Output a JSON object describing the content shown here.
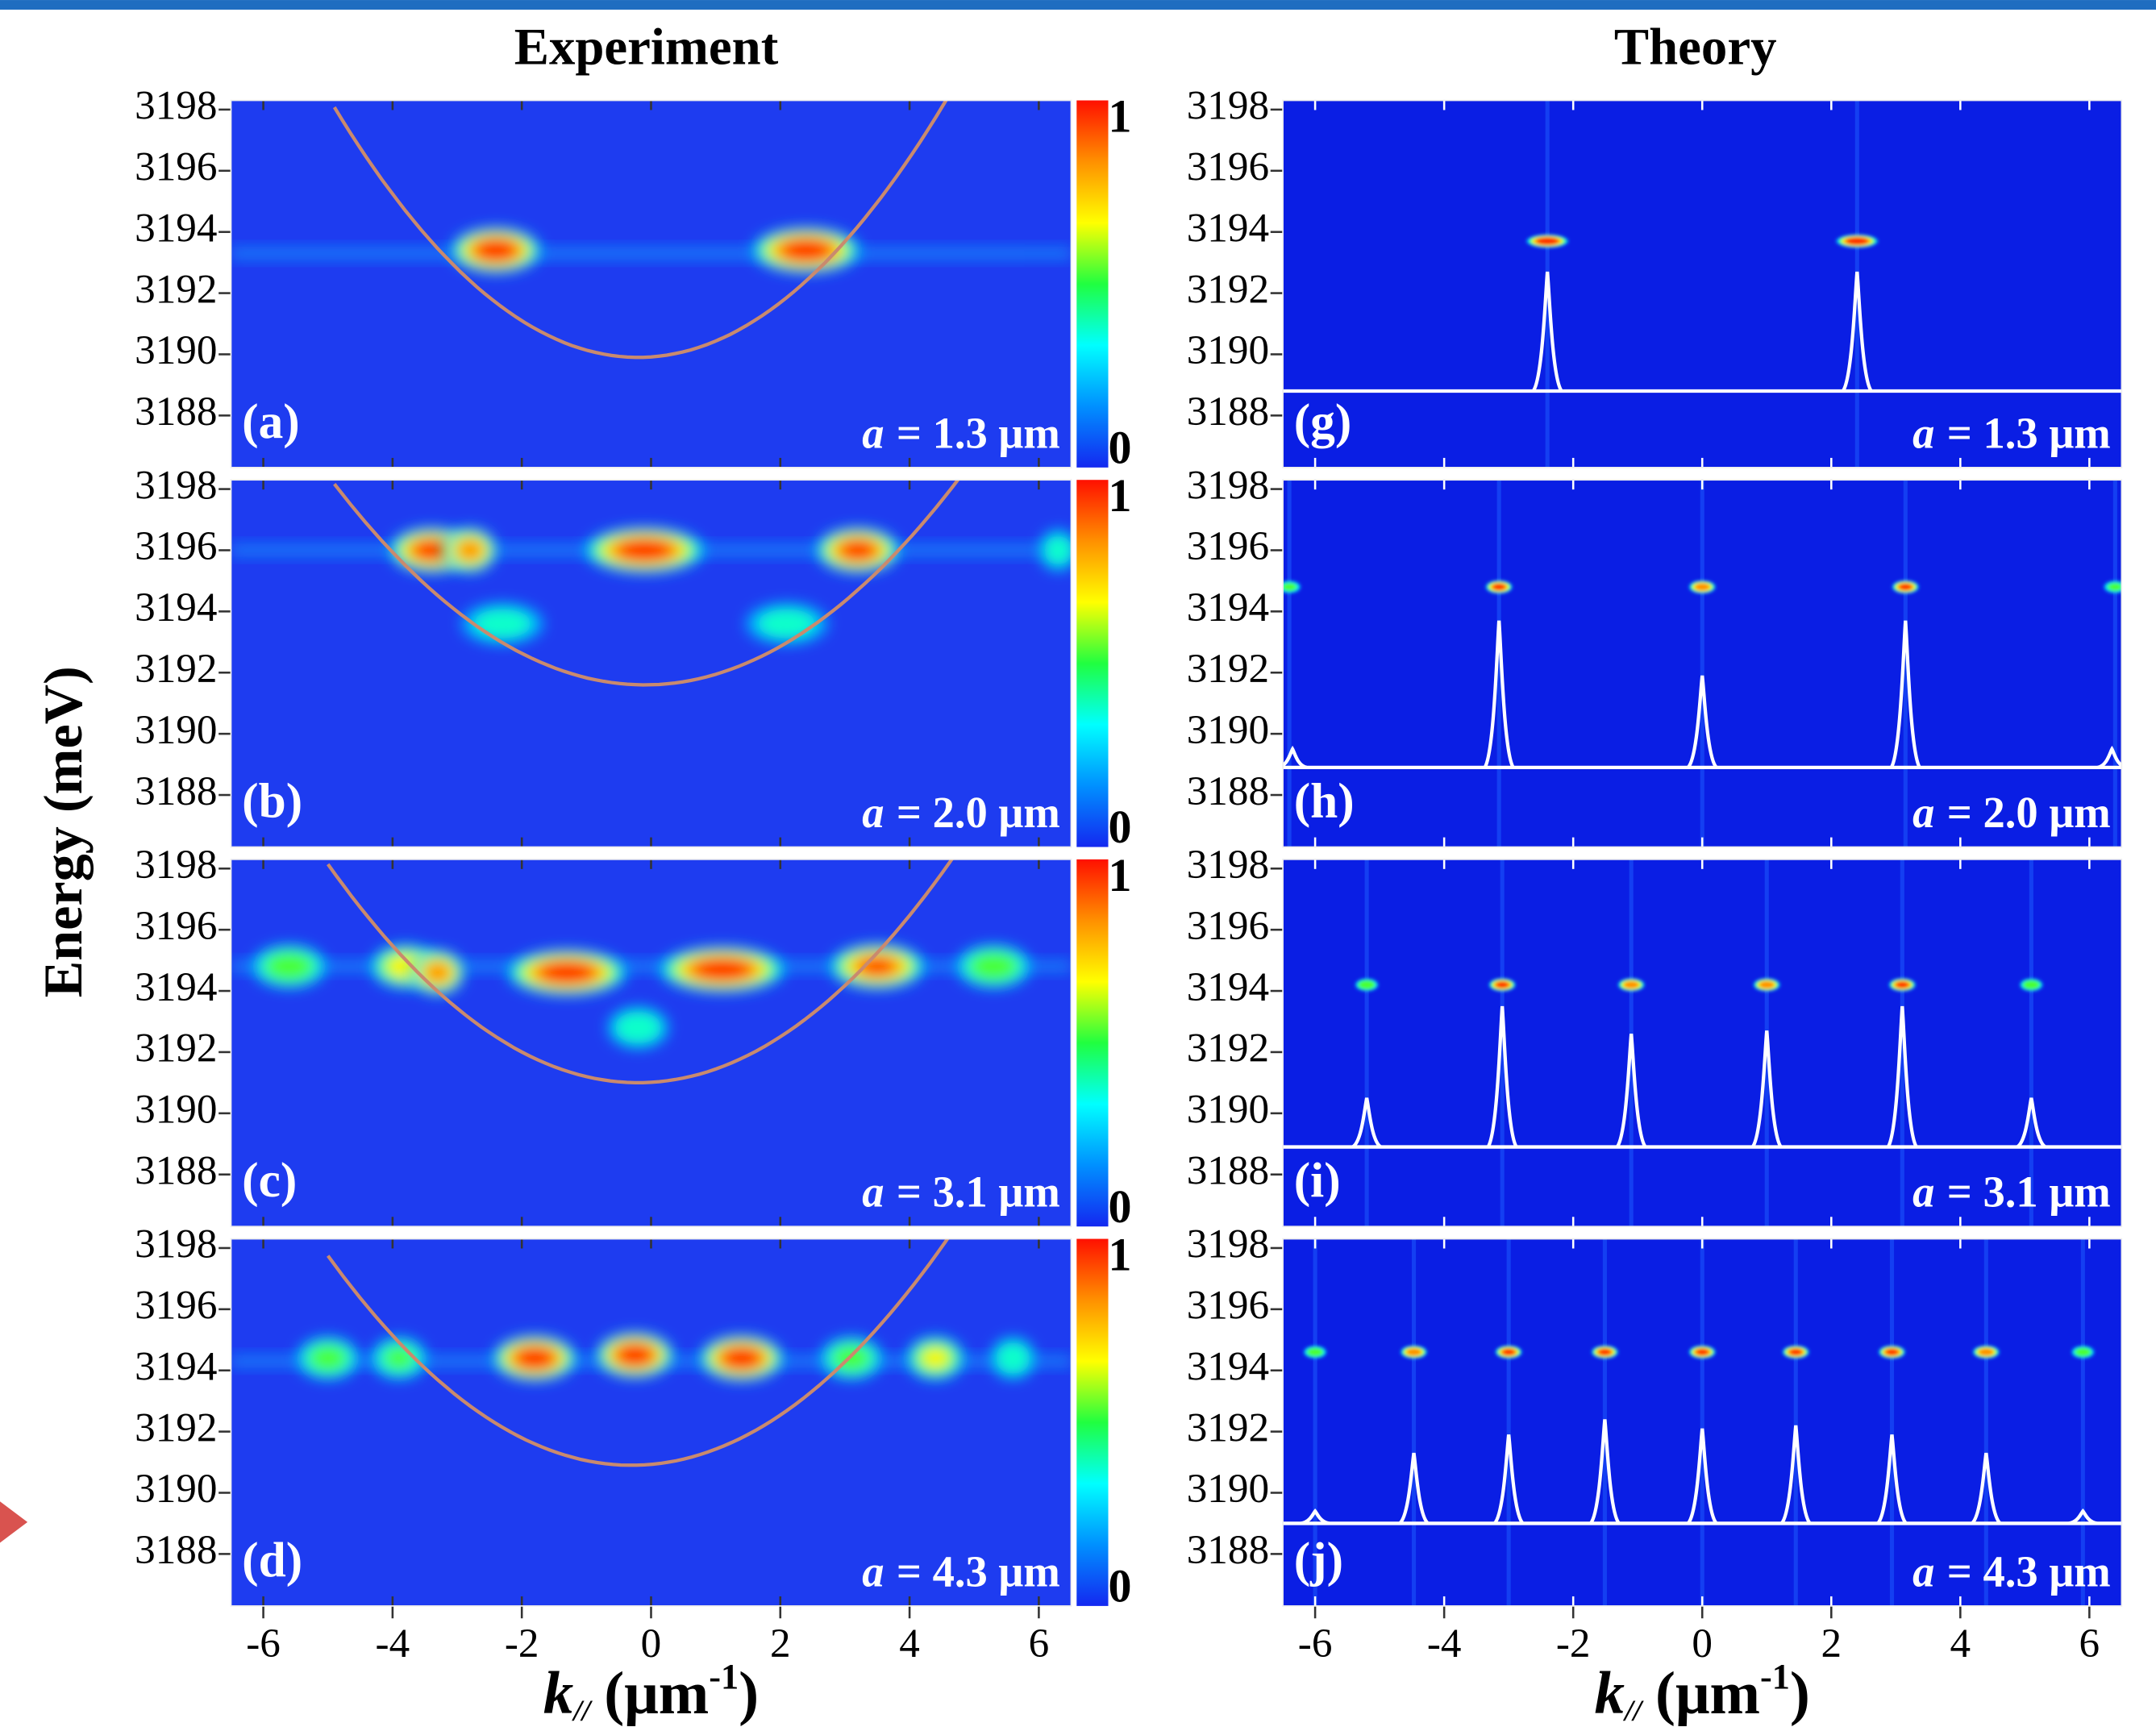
{
  "figure": {
    "titles": [
      "Experiment",
      "Theory"
    ],
    "ylabel": "Energy (meV)",
    "xlabel": [
      "k",
      "//",
      "(μm",
      "-1",
      ")"
    ],
    "colormap": [
      "#1428f0",
      "#0090ff",
      "#00ffff",
      "#20ff40",
      "#ffff00",
      "#ff9000",
      "#ff1000"
    ]
  },
  "chart_data": [
    {
      "type": "heatmap",
      "panel_label": "(a)",
      "annotation": [
        "a",
        "= 1.3 μm"
      ],
      "xlim": [
        -6.5,
        6.5
      ],
      "ylim": [
        3186.3,
        3198.3
      ],
      "xticks": [
        -6,
        -4,
        -2,
        0,
        2,
        4,
        6
      ],
      "yticks": [
        3188,
        3190,
        3192,
        3194,
        3196,
        3198
      ],
      "colorbar_ticks": [
        0,
        1
      ],
      "band_energy": 3193.3,
      "dispersion": {
        "vertex_x": -0.2,
        "vertex_y": 3189.9,
        "curvature": 0.37,
        "xlim": [
          -4.9,
          4.9
        ]
      },
      "spots": {
        "x": [
          -2.4,
          2.4
        ],
        "y": [
          3193.4,
          3193.4
        ],
        "intensity": [
          1,
          1
        ],
        "width": [
          1.4,
          1.7
        ]
      }
    },
    {
      "type": "heatmap",
      "panel_label": "(b)",
      "annotation": [
        "a",
        "= 2.0 μm"
      ],
      "xlim": [
        -6.5,
        6.5
      ],
      "ylim": [
        3186.3,
        3198.3
      ],
      "xticks": [
        -6,
        -4,
        -2,
        0,
        2,
        4,
        6
      ],
      "yticks": [
        3188,
        3190,
        3192,
        3194,
        3196,
        3198
      ],
      "colorbar_ticks": [
        0,
        1
      ],
      "band_energy": 3196,
      "dispersion": {
        "vertex_x": -0.1,
        "vertex_y": 3191.6,
        "curvature": 0.285,
        "xlim": [
          -4.9,
          4.9
        ]
      },
      "spots": {
        "x": [
          -3.4,
          -2.8,
          -0.1,
          3.2,
          -2.3,
          2.1,
          6.3
        ],
        "y": [
          3196,
          3196,
          3196,
          3196,
          3193.6,
          3193.6,
          3196
        ],
        "intensity": [
          0.95,
          0.85,
          1,
          0.95,
          0.4,
          0.4,
          0.4
        ],
        "width": [
          1.3,
          0.8,
          1.9,
          1.3,
          1.4,
          1.4,
          0.6
        ]
      }
    },
    {
      "type": "heatmap",
      "panel_label": "(c)",
      "annotation": [
        "a",
        "= 3.1 μm"
      ],
      "xlim": [
        -6.5,
        6.5
      ],
      "ylim": [
        3186.3,
        3198.3
      ],
      "xticks": [
        -6,
        -4,
        -2,
        0,
        2,
        4,
        6
      ],
      "yticks": [
        3188,
        3190,
        3192,
        3194,
        3196,
        3198
      ],
      "colorbar_ticks": [
        0,
        1
      ],
      "band_energy": 3194.8,
      "dispersion": {
        "vertex_x": -0.2,
        "vertex_y": 3191,
        "curvature": 0.31,
        "xlim": [
          -5,
          5
        ]
      },
      "spots": {
        "x": [
          -5.6,
          -3.8,
          -3.3,
          -1.3,
          1.1,
          3.5,
          5.3,
          -0.2
        ],
        "y": [
          3194.8,
          3194.8,
          3194.6,
          3194.6,
          3194.7,
          3194.8,
          3194.8,
          3192.8
        ],
        "intensity": [
          0.6,
          0.7,
          0.85,
          1,
          1,
          0.9,
          0.6,
          0.45
        ],
        "width": [
          1.2,
          1.1,
          0.8,
          1.9,
          2,
          1.5,
          1.2,
          1
        ]
      }
    },
    {
      "type": "heatmap",
      "panel_label": "(d)",
      "annotation": [
        "a",
        "= 4.3 μm"
      ],
      "xlim": [
        -6.5,
        6.5
      ],
      "ylim": [
        3186.3,
        3198.3
      ],
      "xticks": [
        -6,
        -4,
        -2,
        0,
        2,
        4,
        6
      ],
      "yticks": [
        3188,
        3190,
        3192,
        3194,
        3196,
        3198
      ],
      "colorbar_ticks": [
        0,
        1
      ],
      "band_energy": 3194.3,
      "dispersion": {
        "vertex_x": -0.3,
        "vertex_y": 3190.9,
        "curvature": 0.31,
        "xlim": [
          -5,
          4.8
        ]
      },
      "spots": {
        "x": [
          -5,
          -3.9,
          -1.8,
          -0.25,
          1.4,
          3.1,
          4.4,
          5.6
        ],
        "y": [
          3194.4,
          3194.4,
          3194.4,
          3194.5,
          3194.4,
          3194.4,
          3194.4,
          3194.4
        ],
        "intensity": [
          0.55,
          0.5,
          1,
          1,
          1,
          0.55,
          0.65,
          0.45
        ],
        "width": [
          1,
          0.9,
          1.3,
          1.2,
          1.3,
          1,
          0.9,
          0.7
        ]
      }
    },
    {
      "type": "heatmap",
      "panel_label": "(g)",
      "annotation": [
        "a",
        "= 1.3 μm"
      ],
      "xlim": [
        -6.5,
        6.5
      ],
      "ylim": [
        3186.3,
        3198.3
      ],
      "xticks": [
        -6,
        -4,
        -2,
        0,
        2,
        4,
        6
      ],
      "yticks": [
        3188,
        3190,
        3192,
        3194,
        3196,
        3198
      ],
      "spots": {
        "x": [
          -2.4,
          2.4
        ],
        "y": [
          3193.7,
          3193.7
        ],
        "intensity": [
          1,
          1
        ],
        "width": [
          0.6,
          0.6
        ]
      },
      "spectrum": {
        "baseline": 3188.8,
        "x": [
          -2.4,
          2.4
        ],
        "y": [
          3192.7,
          3192.7
        ]
      }
    },
    {
      "type": "heatmap",
      "panel_label": "(h)",
      "annotation": [
        "a",
        "= 2.0 μm"
      ],
      "xlim": [
        -6.5,
        6.5
      ],
      "ylim": [
        3186.3,
        3198.3
      ],
      "xticks": [
        -6,
        -4,
        -2,
        0,
        2,
        4,
        6
      ],
      "yticks": [
        3188,
        3190,
        3192,
        3194,
        3196,
        3198
      ],
      "spots": {
        "x": [
          -6.4,
          -3.15,
          0,
          3.15,
          6.4
        ],
        "y": [
          3194.8,
          3194.8,
          3194.8,
          3194.8,
          3194.8
        ],
        "intensity": [
          0.5,
          0.9,
          0.85,
          0.9,
          0.5
        ],
        "width": [
          0.3,
          0.35,
          0.35,
          0.35,
          0.3
        ]
      },
      "spectrum": {
        "baseline": 3188.9,
        "x": [
          -6.35,
          -3.15,
          0,
          3.15,
          6.35
        ],
        "y": [
          3189.5,
          3193.7,
          3191.9,
          3193.7,
          3189.5
        ]
      }
    },
    {
      "type": "heatmap",
      "panel_label": "(i)",
      "annotation": [
        "a",
        "= 3.1 μm"
      ],
      "xlim": [
        -6.5,
        6.5
      ],
      "ylim": [
        3186.3,
        3198.3
      ],
      "xticks": [
        -6,
        -4,
        -2,
        0,
        2,
        4,
        6
      ],
      "yticks": [
        3188,
        3190,
        3192,
        3194,
        3196,
        3198
      ],
      "spots": {
        "x": [
          -5.2,
          -3.1,
          -1.1,
          1,
          3.1,
          5.1
        ],
        "y": [
          3194.2,
          3194.2,
          3194.2,
          3194.2,
          3194.2,
          3194.2
        ],
        "intensity": [
          0.6,
          0.9,
          0.85,
          0.85,
          0.9,
          0.6
        ],
        "width": [
          0.3,
          0.35,
          0.35,
          0.35,
          0.35,
          0.3
        ]
      },
      "spectrum": {
        "baseline": 3188.9,
        "x": [
          -5.2,
          -3.1,
          -1.1,
          1,
          3.1,
          5.1
        ],
        "y": [
          3190.5,
          3193.5,
          3192.6,
          3192.7,
          3193.5,
          3190.5
        ]
      }
    },
    {
      "type": "heatmap",
      "panel_label": "(j)",
      "annotation": [
        "a",
        "= 4.3 μm"
      ],
      "xlim": [
        -6.5,
        6.5
      ],
      "ylim": [
        3186.3,
        3198.3
      ],
      "xticks": [
        -6,
        -4,
        -2,
        0,
        2,
        4,
        6
      ],
      "yticks": [
        3188,
        3190,
        3192,
        3194,
        3196,
        3198
      ],
      "spots": {
        "x": [
          -6,
          -4.47,
          -3,
          -1.51,
          0,
          1.45,
          2.94,
          4.4,
          5.9
        ],
        "y": [
          3194.6,
          3194.6,
          3194.6,
          3194.6,
          3194.6,
          3194.6,
          3194.6,
          3194.6,
          3194.6
        ],
        "intensity": [
          0.55,
          0.85,
          0.9,
          0.9,
          0.9,
          0.9,
          0.9,
          0.85,
          0.55
        ],
        "width": [
          0.3,
          0.35,
          0.35,
          0.35,
          0.35,
          0.35,
          0.35,
          0.35,
          0.3
        ]
      },
      "spectrum": {
        "baseline": 3189,
        "x": [
          -6,
          -4.47,
          -3,
          -1.51,
          0,
          1.45,
          2.94,
          4.4,
          5.9
        ],
        "y": [
          3189.4,
          3191.3,
          3191.9,
          3192.4,
          3192.1,
          3192.2,
          3191.9,
          3191.3,
          3189.4
        ]
      }
    }
  ]
}
